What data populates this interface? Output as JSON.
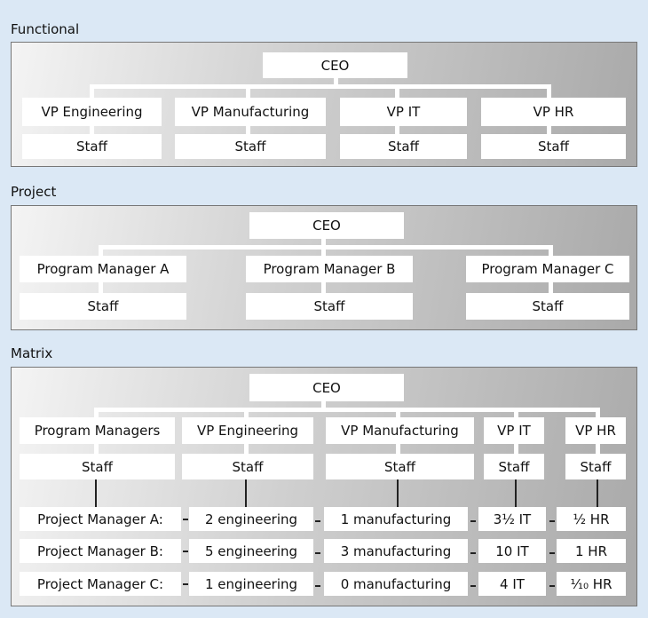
{
  "functional": {
    "title": "Functional",
    "ceo": "CEO",
    "columns": [
      {
        "head": "VP Engineering",
        "staff": "Staff"
      },
      {
        "head": "VP Manufacturing",
        "staff": "Staff"
      },
      {
        "head": "VP IT",
        "staff": "Staff"
      },
      {
        "head": "VP HR",
        "staff": "Staff"
      }
    ]
  },
  "project": {
    "title": "Project",
    "ceo": "CEO",
    "columns": [
      {
        "head": "Program Manager A",
        "staff": "Staff"
      },
      {
        "head": "Program Manager B",
        "staff": "Staff"
      },
      {
        "head": "Program Manager C",
        "staff": "Staff"
      }
    ]
  },
  "matrix": {
    "title": "Matrix",
    "ceo": "CEO",
    "columns": [
      {
        "head": "Program Managers",
        "staff": "Staff"
      },
      {
        "head": "VP Engineering",
        "staff": "Staff"
      },
      {
        "head": "VP Manufacturing",
        "staff": "Staff"
      },
      {
        "head": "VP IT",
        "staff": "Staff"
      },
      {
        "head": "VP HR",
        "staff": "Staff"
      }
    ],
    "rows": [
      [
        "Project Manager A:",
        "2 engineering",
        "1 manufacturing",
        "3½ IT",
        "½ HR"
      ],
      [
        "Project Manager B:",
        "5 engineering",
        "3 manufacturing",
        "10 IT",
        "1 HR"
      ],
      [
        "Project Manager C:",
        "1 engineering",
        "0 manufacturing",
        "4 IT",
        "⅒ HR"
      ]
    ]
  }
}
